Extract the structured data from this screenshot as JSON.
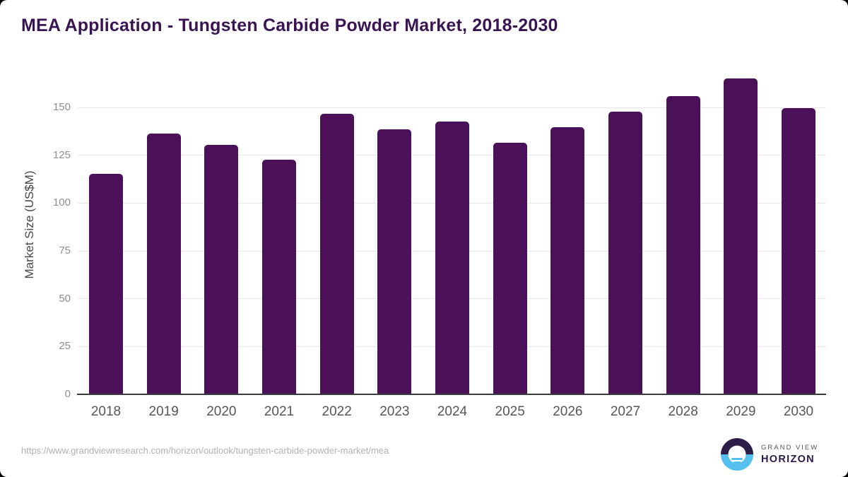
{
  "title": "MEA Application - Tungsten Carbide Powder Market, 2018-2030",
  "chart_data": {
    "type": "bar",
    "title": "MEA Application - Tungsten Carbide Powder Market, 2018-2030",
    "categories": [
      "2018",
      "2019",
      "2020",
      "2021",
      "2022",
      "2023",
      "2024",
      "2025",
      "2026",
      "2027",
      "2028",
      "2029",
      "2030"
    ],
    "values": [
      115.2,
      136.4,
      130.4,
      122.5,
      146.6,
      138.5,
      142.6,
      131.7,
      139.6,
      147.6,
      155.8,
      165.3,
      149.5
    ],
    "xlabel": "",
    "ylabel": "Market Size (US$M)",
    "ylim": [
      0,
      168
    ],
    "yticks": [
      0,
      25,
      50,
      75,
      100,
      125,
      150
    ],
    "grid": "horizontal",
    "legend": "none",
    "bar_color": "#4a1158"
  },
  "footer": {
    "source_url": "https://www.grandviewresearch.com/horizon/outlook/tungsten-carbide-powder-market/mea",
    "logo": {
      "top_text": "GRAND VIEW",
      "bottom_text": "HORIZON"
    }
  },
  "colors": {
    "bar": "#4a1158",
    "title": "#3a1353",
    "axis_line": "#3c3c40",
    "gridline": "#e7e7e9",
    "y_tick_label": "#8e8e8e",
    "x_tick_label": "#565659",
    "url_text": "#b1b1b4",
    "logo_dark": "#2d1d49",
    "logo_blue": "#55c0ed"
  }
}
